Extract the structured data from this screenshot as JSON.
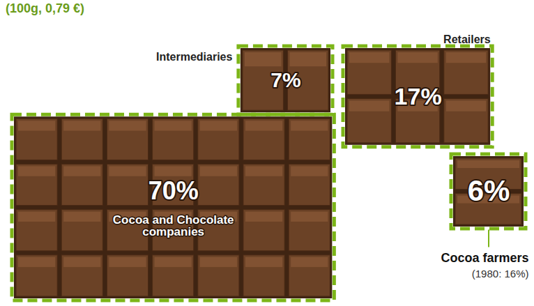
{
  "chart_data": {
    "type": "blocks",
    "subtitle": "(100g, 0,79 €)",
    "categories": [
      "Cocoa and Chocolate companies",
      "Intermediaries",
      "Retailers",
      "Cocoa farmers"
    ],
    "values": [
      70,
      7,
      17,
      6
    ],
    "value_labels": [
      "70%",
      "7%",
      "17%",
      "6%"
    ],
    "data_labels": true,
    "tick_labels": false,
    "color": "#6b4226",
    "annotations": [
      "(1980: 16%)"
    ]
  }
}
